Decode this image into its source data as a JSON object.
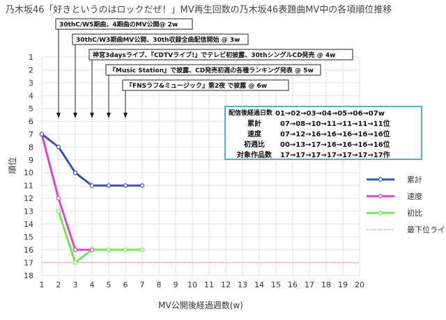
{
  "chart_data": {
    "type": "line",
    "title": "乃木坂46「好きというのはロックだぜ！」MV再生回数の乃木坂46表題曲MV中の各項順位推移",
    "xlabel": "MV公開後経過週数(w)",
    "ylabel": "順位",
    "xlim": [
      1,
      20
    ],
    "ylim": [
      18,
      1
    ],
    "y_inverted": true,
    "x_ticks": [
      1,
      2,
      3,
      4,
      5,
      6,
      7,
      8,
      9,
      10,
      11,
      12,
      13,
      14,
      15,
      16,
      17,
      18,
      19,
      20
    ],
    "y_ticks": [
      1,
      2,
      3,
      4,
      5,
      6,
      7,
      8,
      9,
      10,
      11,
      12,
      13,
      14,
      15,
      16,
      17,
      18
    ],
    "grid": true,
    "legend_position": "right",
    "series": [
      {
        "name": "累計",
        "color": "#3a4fb8",
        "x": [
          1,
          2,
          3,
          4,
          5,
          6,
          7
        ],
        "y": [
          7,
          8,
          10,
          11,
          11,
          11,
          11
        ]
      },
      {
        "name": "速度",
        "color": "#e23fd1",
        "x": [
          1,
          2,
          3,
          4
        ],
        "y": [
          7,
          12,
          16,
          16
        ]
      },
      {
        "name": "初比",
        "color": "#6fe84d",
        "x": [
          2,
          3,
          4,
          5,
          6,
          7
        ],
        "y": [
          13,
          17,
          16,
          16,
          16,
          16
        ]
      }
    ],
    "reference_line": {
      "name": "最下位ライン",
      "y": 17,
      "color": "#e89a9a"
    },
    "annotations": [
      {
        "text": "30thC/W5期曲、4期曲のMV公開@ 2w",
        "week": 2
      },
      {
        "text": "30thC/W3期曲MV公開、30th収録全曲配信開始 @ 3w",
        "week": 3
      },
      {
        "text": "神宮3daysライブ、『CDTVライブ!』でテレビ初披露、30thシングルCD発売 @ 4w",
        "week": 4
      },
      {
        "text": "『Music Station』で披露、CD発売初週の各種ランキング発表 @ 5w",
        "week": 5
      },
      {
        "text": "『FNSラフ&ミュージック』第2夜 で披露 @ 6w",
        "week": 6
      }
    ]
  },
  "info_box": {
    "header_label": "配信後経過日数",
    "header_value": "01→02→03→04→05→06→07w",
    "rows": [
      {
        "label": "累計",
        "value": "07→08→10→11→11→11→11位"
      },
      {
        "label": "速度",
        "value": "07→12→16→16→16→16→16位"
      },
      {
        "label": "初週比",
        "value": "00→13→17→16→16→16→16位"
      },
      {
        "label": "対象作品数",
        "value": "17→17→17→17→17→17→17作"
      }
    ]
  }
}
